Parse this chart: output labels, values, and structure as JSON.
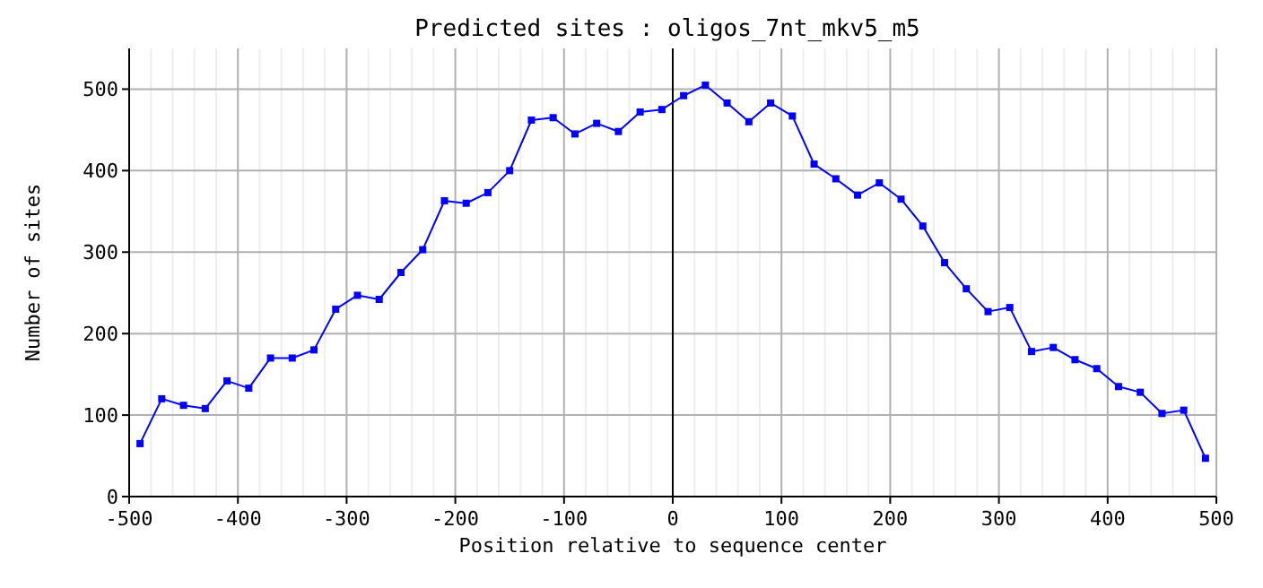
{
  "chart_data": {
    "type": "line",
    "title": "Predicted sites : oligos_7nt_mkv5_m5",
    "xlabel": "Position relative to sequence center",
    "ylabel": "Number of sites",
    "x": [
      -490,
      -470,
      -450,
      -430,
      -410,
      -390,
      -370,
      -350,
      -330,
      -310,
      -290,
      -270,
      -250,
      -230,
      -210,
      -190,
      -170,
      -150,
      -130,
      -110,
      -90,
      -70,
      -50,
      -30,
      -10,
      10,
      30,
      50,
      70,
      90,
      110,
      130,
      150,
      170,
      190,
      210,
      230,
      250,
      270,
      290,
      310,
      330,
      350,
      370,
      390,
      410,
      430,
      450,
      470,
      490
    ],
    "series": [
      {
        "color": "#0000ff",
        "values": [
          65,
          120,
          112,
          108,
          142,
          133,
          170,
          170,
          180,
          230,
          247,
          242,
          275,
          303,
          363,
          360,
          373,
          400,
          462,
          465,
          445,
          458,
          448,
          472,
          475,
          492,
          505,
          483,
          460,
          483,
          467,
          408,
          390,
          370,
          385,
          365,
          332,
          287,
          255,
          227,
          232,
          178,
          183,
          168,
          157,
          135,
          128,
          102,
          106,
          47
        ]
      }
    ],
    "xlim": [
      -500,
      500
    ],
    "ylim": [
      0,
      550
    ],
    "xticks": [
      -500,
      -400,
      -300,
      -200,
      -100,
      0,
      100,
      200,
      300,
      400,
      500
    ],
    "yticks": [
      0,
      100,
      200,
      300,
      400,
      500
    ],
    "grid": true,
    "marker": "square",
    "line_style": "solid",
    "ref_lines": [
      {
        "axis": "x",
        "value": 0,
        "color": "#000000"
      }
    ]
  }
}
